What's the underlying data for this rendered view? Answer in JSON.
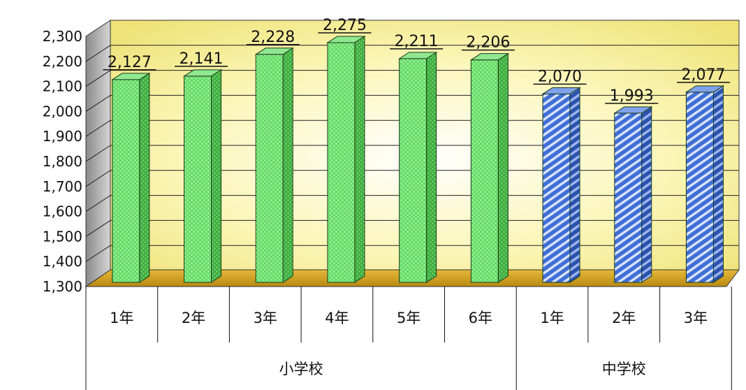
{
  "chart_data": {
    "type": "bar",
    "title": "",
    "xlabel": "",
    "ylabel": "",
    "ylim": [
      1300,
      2300
    ],
    "yticks": [
      "1,300",
      "1,400",
      "1,500",
      "1,600",
      "1,700",
      "1,800",
      "1,900",
      "2,000",
      "2,100",
      "2,200",
      "2,300"
    ],
    "grid": true,
    "groups": [
      {
        "name": "小学校",
        "color": "#66dd66",
        "pattern": "dots",
        "categories": [
          "1年",
          "2年",
          "3年",
          "4年",
          "5年",
          "6年"
        ],
        "values": [
          2127,
          2141,
          2228,
          2275,
          2211,
          2206
        ],
        "labels": [
          "2,127",
          "2,141",
          "2,228",
          "2,275",
          "2,211",
          "2,206"
        ]
      },
      {
        "name": "中学校",
        "color": "#4477dd",
        "pattern": "stripes",
        "categories": [
          "1年",
          "2年",
          "3年"
        ],
        "values": [
          2070,
          1993,
          2077
        ],
        "labels": [
          "2,070",
          "1,993",
          "2,077"
        ]
      }
    ]
  }
}
